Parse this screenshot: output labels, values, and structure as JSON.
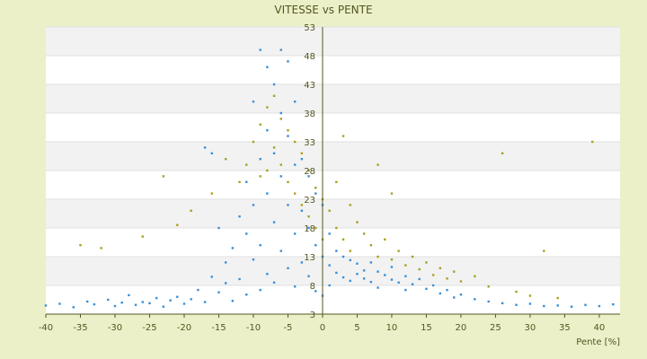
{
  "chart_data": {
    "type": "scatter",
    "title": "VITESSE vs PENTE",
    "xlabel": "Pente [%]",
    "ylabel": "",
    "xlim": [
      -40,
      43
    ],
    "ylim": [
      3,
      53
    ],
    "x_ticks": [
      -40,
      -35,
      -30,
      -25,
      -20,
      -15,
      -10,
      -5,
      0,
      5,
      10,
      15,
      20,
      25,
      30,
      35,
      40
    ],
    "y_ticks": [
      3,
      8,
      13,
      18,
      23,
      28,
      33,
      38,
      43,
      48,
      53
    ],
    "grid": true,
    "legend": "none",
    "colors": {
      "series_a": "#3a8fd6",
      "series_b": "#a8a020",
      "band": "#f2f2f2",
      "plot_bg": "#ffffff",
      "axis": "#555522"
    },
    "series": [
      {
        "points": [
          [
            -40,
            4.5
          ],
          [
            -38,
            4.8
          ],
          [
            -36,
            4.2
          ],
          [
            -34,
            5.2
          ],
          [
            -33,
            4.7
          ],
          [
            -31,
            5.5
          ],
          [
            -30,
            4.4
          ],
          [
            -29,
            5.0
          ],
          [
            -28,
            6.3
          ],
          [
            -27,
            4.6
          ],
          [
            -26,
            5.1
          ],
          [
            -25,
            4.9
          ],
          [
            -24,
            5.8
          ],
          [
            -23,
            4.3
          ],
          [
            -22,
            5.4
          ],
          [
            -21,
            6.0
          ],
          [
            -20,
            4.8
          ],
          [
            -19,
            5.6
          ],
          [
            -18,
            7.2
          ],
          [
            -17,
            5.1
          ],
          [
            -17,
            32
          ],
          [
            -16,
            31
          ],
          [
            -16,
            9.5
          ],
          [
            -15,
            6.8
          ],
          [
            -15,
            18
          ],
          [
            -14,
            8.4
          ],
          [
            -14,
            12
          ],
          [
            -13,
            5.3
          ],
          [
            -13,
            14.5
          ],
          [
            -12,
            20
          ],
          [
            -12,
            9.1
          ],
          [
            -11,
            17
          ],
          [
            -11,
            26
          ],
          [
            -11,
            6.4
          ],
          [
            -10,
            40
          ],
          [
            -10,
            22
          ],
          [
            -10,
            12.5
          ],
          [
            -9,
            49
          ],
          [
            -9,
            30
          ],
          [
            -9,
            15
          ],
          [
            -9,
            7.2
          ],
          [
            -8,
            46
          ],
          [
            -8,
            35
          ],
          [
            -8,
            24
          ],
          [
            -8,
            10
          ],
          [
            -7,
            43
          ],
          [
            -7,
            31
          ],
          [
            -7,
            19
          ],
          [
            -7,
            8.5
          ],
          [
            -6,
            49
          ],
          [
            -6,
            38
          ],
          [
            -6,
            27
          ],
          [
            -6,
            14
          ],
          [
            -5,
            47
          ],
          [
            -5,
            34
          ],
          [
            -5,
            22
          ],
          [
            -5,
            11
          ],
          [
            -4,
            40
          ],
          [
            -4,
            29
          ],
          [
            -4,
            17
          ],
          [
            -4,
            7.8
          ],
          [
            -3,
            30
          ],
          [
            -3,
            21
          ],
          [
            -3,
            12
          ],
          [
            -2,
            27
          ],
          [
            -2,
            18
          ],
          [
            -2,
            9.6
          ],
          [
            -1,
            24
          ],
          [
            -1,
            15
          ],
          [
            -1,
            7.0
          ],
          [
            0,
            22
          ],
          [
            0,
            13
          ],
          [
            0,
            6.2
          ],
          [
            1,
            17
          ],
          [
            1,
            11.5
          ],
          [
            1,
            8.0
          ],
          [
            2,
            14
          ],
          [
            2,
            10.2
          ],
          [
            3,
            13
          ],
          [
            3,
            9.4
          ],
          [
            4,
            12.4
          ],
          [
            4,
            8.8
          ],
          [
            5,
            11.8
          ],
          [
            5,
            10
          ],
          [
            6,
            10.6
          ],
          [
            6,
            9.2
          ],
          [
            7,
            12
          ],
          [
            7,
            8.6
          ],
          [
            8,
            10.4
          ],
          [
            8,
            7.6
          ],
          [
            9,
            9.8
          ],
          [
            10,
            9.0
          ],
          [
            10,
            11.2
          ],
          [
            11,
            8.5
          ],
          [
            12,
            9.6
          ],
          [
            12,
            7.2
          ],
          [
            13,
            8.2
          ],
          [
            14,
            9.1
          ],
          [
            15,
            7.4
          ],
          [
            16,
            8.0
          ],
          [
            17,
            6.6
          ],
          [
            18,
            7.2
          ],
          [
            19,
            5.9
          ],
          [
            20,
            6.4
          ],
          [
            22,
            5.6
          ],
          [
            24,
            5.2
          ],
          [
            26,
            4.9
          ],
          [
            28,
            4.6
          ],
          [
            30,
            4.8
          ],
          [
            32,
            4.4
          ],
          [
            34,
            4.5
          ],
          [
            36,
            4.3
          ],
          [
            38,
            4.6
          ],
          [
            40,
            4.4
          ],
          [
            42,
            4.7
          ]
        ]
      },
      {
        "points": [
          [
            -35,
            15
          ],
          [
            -32,
            14.5
          ],
          [
            -26,
            16.5
          ],
          [
            -23,
            27
          ],
          [
            -21,
            18.5
          ],
          [
            -19,
            21
          ],
          [
            -16,
            24
          ],
          [
            -14,
            30
          ],
          [
            -12,
            26
          ],
          [
            -11,
            29
          ],
          [
            -10,
            33
          ],
          [
            -9,
            36
          ],
          [
            -9,
            27
          ],
          [
            -8,
            39
          ],
          [
            -8,
            28
          ],
          [
            -7,
            41
          ],
          [
            -7,
            32
          ],
          [
            -6,
            37
          ],
          [
            -6,
            29
          ],
          [
            -5,
            35
          ],
          [
            -5,
            26
          ],
          [
            -4,
            33
          ],
          [
            -4,
            24
          ],
          [
            -3,
            31
          ],
          [
            -3,
            22
          ],
          [
            -2,
            28
          ],
          [
            -2,
            20
          ],
          [
            -1,
            25
          ],
          [
            -1,
            18
          ],
          [
            0,
            23
          ],
          [
            0,
            16
          ],
          [
            1,
            21
          ],
          [
            2,
            18
          ],
          [
            2,
            26
          ],
          [
            3,
            34
          ],
          [
            3,
            16
          ],
          [
            4,
            22
          ],
          [
            4,
            14
          ],
          [
            5,
            19
          ],
          [
            6,
            17
          ],
          [
            7,
            15
          ],
          [
            8,
            29
          ],
          [
            8,
            13
          ],
          [
            9,
            16
          ],
          [
            10,
            12.5
          ],
          [
            10,
            24
          ],
          [
            11,
            14
          ],
          [
            12,
            11.5
          ],
          [
            13,
            13
          ],
          [
            14,
            10.8
          ],
          [
            15,
            12
          ],
          [
            16,
            9.8
          ],
          [
            17,
            11
          ],
          [
            18,
            9.2
          ],
          [
            19,
            10.4
          ],
          [
            20,
            8.7
          ],
          [
            22,
            9.6
          ],
          [
            24,
            7.8
          ],
          [
            26,
            31
          ],
          [
            28,
            6.9
          ],
          [
            30,
            6.2
          ],
          [
            32,
            14
          ],
          [
            34,
            5.8
          ],
          [
            39,
            33
          ]
        ]
      }
    ]
  }
}
